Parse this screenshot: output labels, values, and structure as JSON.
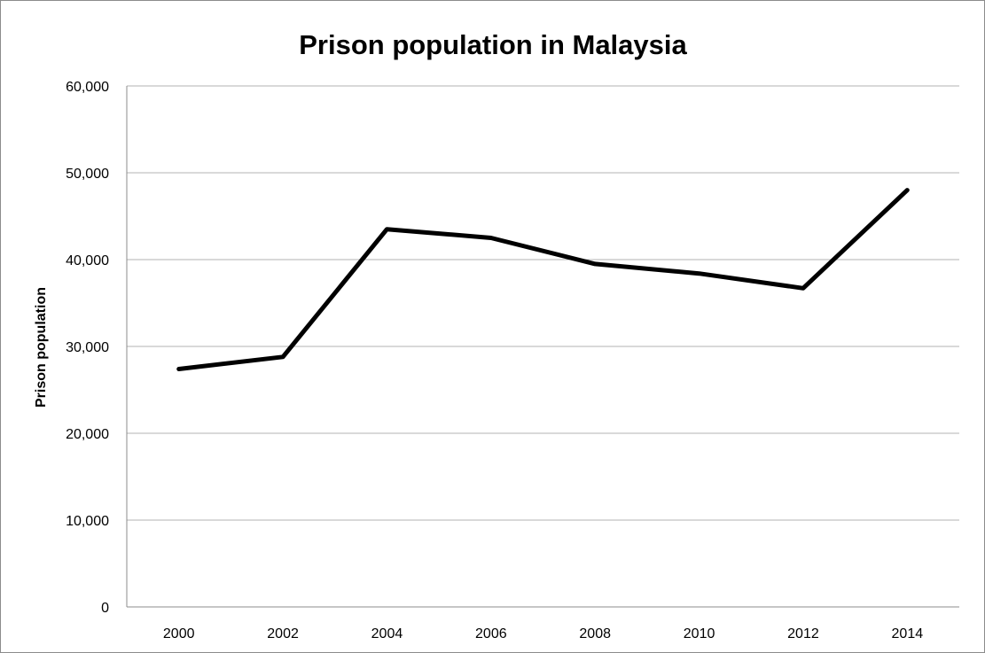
{
  "chart_data": {
    "type": "line",
    "title": "Prison population in Malaysia",
    "xlabel": "",
    "ylabel": "Prison population",
    "x": [
      "2000",
      "2002",
      "2004",
      "2006",
      "2008",
      "2010",
      "2012",
      "2014"
    ],
    "series": [
      {
        "values": [
          27400,
          28800,
          43500,
          42500,
          39500,
          38400,
          36700,
          48000
        ],
        "color": "#000000"
      }
    ],
    "ylim": [
      0,
      60000
    ],
    "yticks": [
      0,
      10000,
      20000,
      30000,
      40000,
      50000,
      60000
    ],
    "ytick_labels": [
      "0",
      "10,000",
      "20,000",
      "30,000",
      "40,000",
      "50,000",
      "60,000"
    ],
    "grid": true,
    "legend": "none"
  }
}
